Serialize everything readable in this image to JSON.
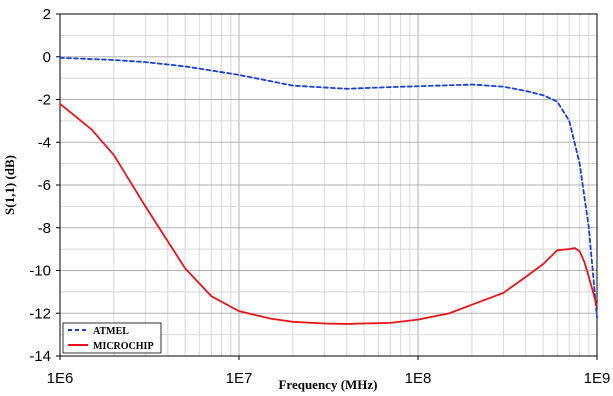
{
  "chart_data": {
    "type": "line",
    "xlabel": "Frequency (MHz)",
    "ylabel": "S(1,1) (dB)",
    "x_scale": "log",
    "xlim": [
      1000000,
      1000000000
    ],
    "ylim": [
      -14,
      2
    ],
    "x_tick_labels": [
      "1E6",
      "1E7",
      "1E8",
      "1E9"
    ],
    "y_tick_labels": [
      "2",
      "0",
      "-2",
      "-4",
      "-6",
      "-8",
      "-10",
      "-12",
      "-14"
    ],
    "grid": true,
    "legend_position": "bottom-left",
    "series": [
      {
        "name": "ATMEL",
        "color": "#1a3fd6",
        "style": "dashed",
        "x": [
          1000000,
          2000000,
          3000000,
          5000000,
          10000000,
          20000000,
          40000000,
          70000000,
          100000000,
          200000000,
          300000000,
          400000000,
          500000000,
          600000000,
          700000000,
          800000000,
          900000000,
          1000000000
        ],
        "y": [
          -0.05,
          -0.15,
          -0.25,
          -0.45,
          -0.85,
          -1.35,
          -1.5,
          -1.42,
          -1.38,
          -1.3,
          -1.4,
          -1.6,
          -1.8,
          -2.1,
          -3.0,
          -5.0,
          -8.0,
          -12.2
        ]
      },
      {
        "name": "MICROCHIP",
        "color": "#e8141a",
        "style": "solid",
        "x": [
          1000000,
          1500000,
          2000000,
          3000000,
          5000000,
          7000000,
          10000000,
          15000000,
          20000000,
          30000000,
          40000000,
          50000000,
          70000000,
          100000000,
          150000000,
          200000000,
          300000000,
          400000000,
          500000000,
          600000000,
          700000000,
          750000000,
          800000000,
          850000000,
          900000000,
          950000000,
          1000000000
        ],
        "y": [
          -2.2,
          -3.4,
          -4.6,
          -7.0,
          -9.9,
          -11.2,
          -11.9,
          -12.25,
          -12.4,
          -12.48,
          -12.5,
          -12.48,
          -12.45,
          -12.3,
          -12.0,
          -11.6,
          -11.05,
          -10.3,
          -9.7,
          -9.05,
          -9.0,
          -8.95,
          -9.1,
          -9.6,
          -10.3,
          -11.0,
          -11.7
        ]
      }
    ]
  }
}
